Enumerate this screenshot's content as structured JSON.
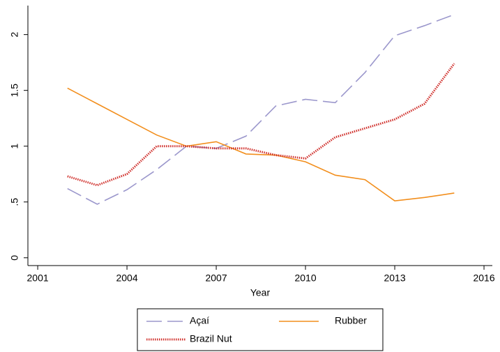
{
  "chart_data": {
    "type": "line",
    "x_label": "Year",
    "x": [
      2002,
      2003,
      2004,
      2005,
      2006,
      2007,
      2008,
      2009,
      2010,
      2011,
      2012,
      2013,
      2014,
      2015
    ],
    "series": [
      {
        "name": "Açaí",
        "color": "#9b97cc",
        "dash": "dashed",
        "values": [
          0.62,
          0.48,
          0.61,
          0.79,
          1.0,
          0.98,
          1.09,
          1.36,
          1.42,
          1.39,
          1.66,
          1.99,
          2.08,
          2.18
        ]
      },
      {
        "name": "Rubber",
        "color": "#f28e1c",
        "dash": "solid",
        "values": [
          1.52,
          1.38,
          1.24,
          1.1,
          1.0,
          1.04,
          0.93,
          0.92,
          0.86,
          0.74,
          0.7,
          0.51,
          0.54,
          0.58
        ]
      },
      {
        "name": "Brazil Nut",
        "color": "#d0312d",
        "dash": "dotted",
        "values": [
          0.73,
          0.65,
          0.75,
          1.0,
          1.0,
          0.98,
          0.98,
          0.92,
          0.89,
          1.08,
          1.16,
          1.24,
          1.38,
          1.74
        ]
      }
    ],
    "xlim": [
      2000.67,
      2016.28
    ],
    "xticks": [
      2001,
      2004,
      2007,
      2010,
      2013,
      2016
    ],
    "ylim": [
      -0.07,
      2.26
    ],
    "yticks": [
      0,
      {
        "value": 0.5,
        "label": ".5"
      },
      1,
      1.5,
      2
    ],
    "grid": false,
    "legend": "bottom"
  }
}
